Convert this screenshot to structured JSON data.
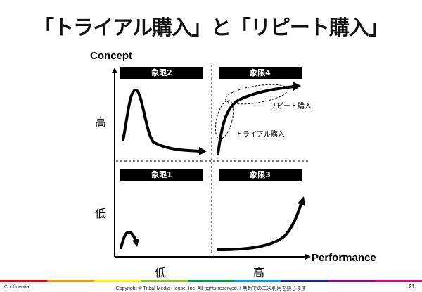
{
  "title": "「トライアル購入」と「リピート購入」",
  "axes": {
    "y_title": "Concept",
    "x_title": "Performance"
  },
  "levels": {
    "y_high": "高",
    "y_low": "低",
    "x_low": "低",
    "x_high": "高"
  },
  "quadrants": {
    "top_left": "象限2",
    "top_right": "象限4",
    "bottom_left": "象限1",
    "bottom_right": "象限3"
  },
  "curve_labels": {
    "repeat": "リピート購入",
    "trial": "トライアル購入"
  },
  "footer": {
    "confidential": "Confidential",
    "copyright": "Copyright © Tribal Media House, Inc. All rights reserved. / 無断での二次利用を禁じます",
    "page": "21"
  },
  "colors": {
    "stripe": [
      "#e60012",
      "#f39800",
      "#fff100",
      "#8fc31f",
      "#009944",
      "#00a0e9",
      "#1d2088",
      "#920783",
      "#e4007f"
    ]
  }
}
